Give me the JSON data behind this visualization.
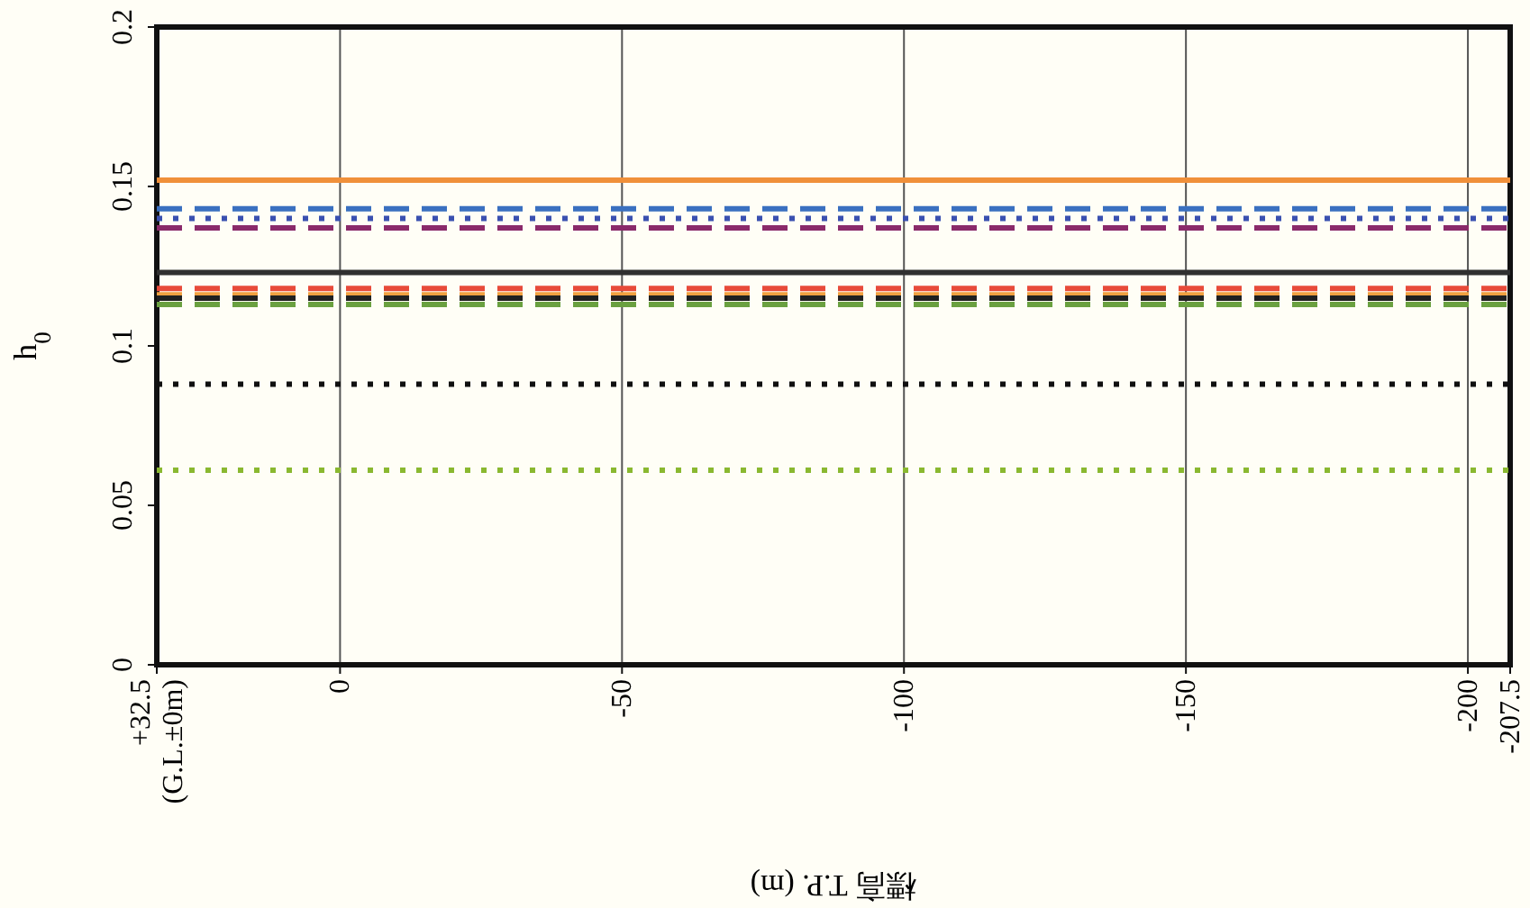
{
  "chart_data": {
    "type": "line",
    "xlabel": "標高 T.P. (m)",
    "ylabel": "h$_{0}$",
    "xlim": [
      32.5,
      -207.5
    ],
    "ylim": [
      0,
      0.2
    ],
    "xticks": [
      {
        "value": 32.5,
        "label": "+32.5 (G.L.±0m)"
      },
      0,
      -50,
      -100,
      -150,
      -200,
      -207.5
    ],
    "yticks": [
      0,
      0.05,
      0.1,
      0.15,
      0.2
    ],
    "grid": "x",
    "marker": "none",
    "x": [
      32.5,
      -207.5
    ],
    "series": [
      {
        "color": "#f0903a",
        "line_style": "solid",
        "values": [
          0.152,
          0.152
        ]
      },
      {
        "color": "#3a70c0",
        "line_style": "dashed",
        "values": [
          0.143,
          0.143
        ]
      },
      {
        "color": "#3a50b0",
        "line_style": "dotted",
        "values": [
          0.14,
          0.14
        ]
      },
      {
        "color": "#8a2a6a",
        "line_style": "dashed",
        "values": [
          0.137,
          0.137
        ]
      },
      {
        "color": "#303030",
        "line_style": "solid",
        "values": [
          0.123,
          0.123
        ]
      },
      {
        "color": "#e84a3a",
        "line_style": "dashed",
        "values": [
          0.118,
          0.118
        ]
      },
      {
        "color": "#f0a040",
        "line_style": "dashed",
        "values": [
          0.116,
          0.116
        ]
      },
      {
        "color": "#202020",
        "line_style": "dashed",
        "values": [
          0.115,
          0.115
        ]
      },
      {
        "color": "#6aa040",
        "line_style": "dashed",
        "values": [
          0.113,
          0.113
        ]
      },
      {
        "color": "#101010",
        "line_style": "dotted",
        "values": [
          0.088,
          0.088
        ]
      },
      {
        "color": "#8ab830",
        "line_style": "dotted",
        "values": [
          0.061,
          0.061
        ]
      }
    ]
  }
}
